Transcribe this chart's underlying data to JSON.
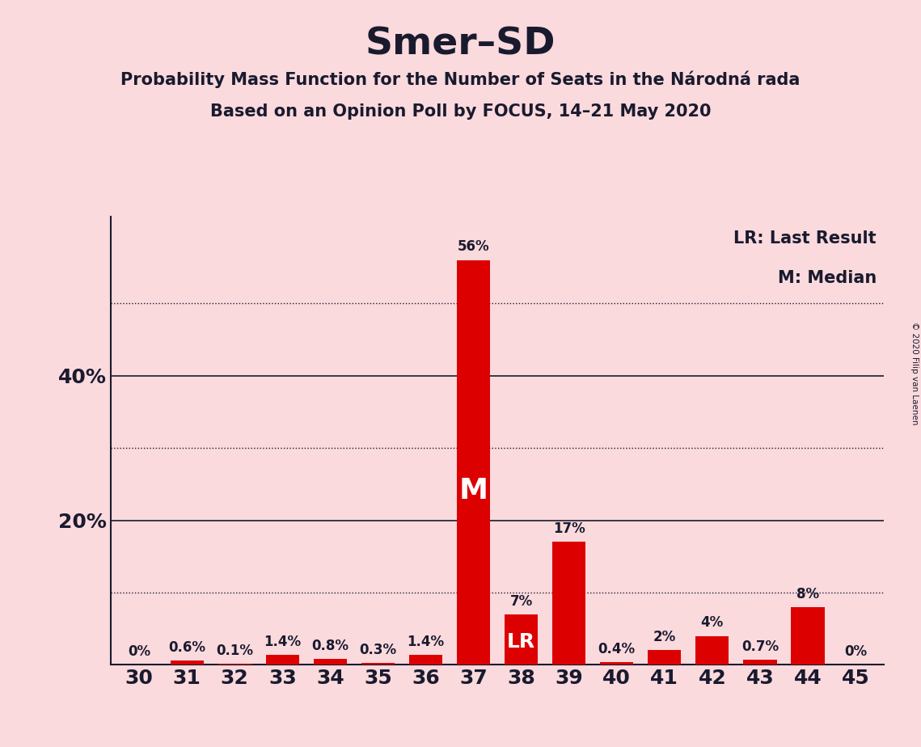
{
  "title": "Smer–SD",
  "subtitle1": "Probability Mass Function for the Number of Seats in the Národná rada",
  "subtitle2": "Based on an Opinion Poll by FOCUS, 14–21 May 2020",
  "copyright": "© 2020 Filip van Laenen",
  "categories": [
    30,
    31,
    32,
    33,
    34,
    35,
    36,
    37,
    38,
    39,
    40,
    41,
    42,
    43,
    44,
    45
  ],
  "values": [
    0.0,
    0.6,
    0.1,
    1.4,
    0.8,
    0.3,
    1.4,
    56.0,
    7.0,
    17.0,
    0.4,
    2.0,
    4.0,
    0.7,
    8.0,
    0.0
  ],
  "bar_color": "#dd0000",
  "median_idx": 7,
  "lr_idx": 8,
  "background_color": "#fadadd",
  "text_color": "#1a1a2e",
  "legend_lr": "LR: Last Result",
  "legend_m": "M: Median",
  "ylim": [
    0,
    62
  ],
  "yticks": [
    0,
    10,
    20,
    30,
    40,
    50
  ],
  "solid_gridlines": [
    20,
    40
  ],
  "dotted_gridlines": [
    10,
    30,
    50
  ],
  "bar_width": 0.7,
  "title_fontsize": 34,
  "subtitle_fontsize": 15,
  "tick_fontsize": 18,
  "label_fontsize": 12,
  "legend_fontsize": 15
}
